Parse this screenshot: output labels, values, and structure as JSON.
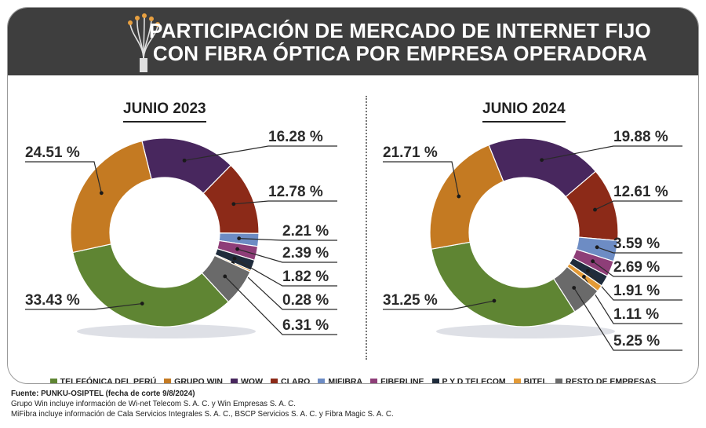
{
  "header": {
    "title_line1": "PARTICIPACIÓN DE MERCADO DE INTERNET FIJO",
    "title_line2": "CON FIBRA ÓPTICA POR EMPRESA OPERADORA"
  },
  "colors": {
    "TELEFÓNICA DEL PERÚ": "#5f8533",
    "GRUPO WIN": "#c47a22",
    "WOW": "#48275e",
    "CLARO": "#8c2a18",
    "MIFIBRA": "#6d8cc4",
    "FIBERLINE": "#8e3e78",
    "P Y D TELECOM": "#1f2c3c",
    "BITEL": "#e39a36",
    "RESTO DE EMPRESAS": "#6a6a6a"
  },
  "chart_data": [
    {
      "type": "pie",
      "title": "JUNIO 2023",
      "slices": [
        {
          "name": "WOW",
          "value": 16.28,
          "label": "16.28 %"
        },
        {
          "name": "CLARO",
          "value": 12.78,
          "label": "12.78 %"
        },
        {
          "name": "MIFIBRA",
          "value": 2.21,
          "label": "2.21 %"
        },
        {
          "name": "FIBERLINE",
          "value": 2.39,
          "label": "2.39 %"
        },
        {
          "name": "P Y D TELECOM",
          "value": 1.82,
          "label": "1.82 %"
        },
        {
          "name": "BITEL",
          "value": 0.28,
          "label": "0.28 %"
        },
        {
          "name": "RESTO DE EMPRESAS",
          "value": 6.31,
          "label": "6.31 %"
        },
        {
          "name": "TELEFÓNICA DEL PERÚ",
          "value": 33.43,
          "label": "33.43 %"
        },
        {
          "name": "GRUPO WIN",
          "value": 24.51,
          "label": "24.51 %"
        }
      ]
    },
    {
      "type": "pie",
      "title": "JUNIO 2024",
      "slices": [
        {
          "name": "WOW",
          "value": 19.88,
          "label": "19.88 %"
        },
        {
          "name": "CLARO",
          "value": 12.61,
          "label": "12.61 %"
        },
        {
          "name": "MIFIBRA",
          "value": 3.59,
          "label": "3.59 %"
        },
        {
          "name": "FIBERLINE",
          "value": 2.69,
          "label": "2.69 %"
        },
        {
          "name": "P Y D TELECOM",
          "value": 1.91,
          "label": "1.91 %"
        },
        {
          "name": "BITEL",
          "value": 1.11,
          "label": "1.11 %"
        },
        {
          "name": "RESTO DE EMPRESAS",
          "value": 5.25,
          "label": "5.25 %"
        },
        {
          "name": "TELEFÓNICA DEL PERÚ",
          "value": 31.25,
          "label": "31.25 %"
        },
        {
          "name": "GRUPO WIN",
          "value": 21.71,
          "label": "21.71 %"
        }
      ]
    }
  ],
  "legend": [
    "TELEFÓNICA DEL PERÚ",
    "GRUPO WIN",
    "WOW",
    "CLARO",
    "MIFIBRA",
    "FIBERLINE",
    "P Y D TELECOM",
    "BITEL",
    "RESTO DE EMPRESAS"
  ],
  "notes": {
    "source": "Fuente: PUNKU-OSIPTEL (fecha de corte 9/8/2024)",
    "line1": "Grupo Win incluye información de Wi-net Telecom S. A. C. y Win Empresas S. A. C.",
    "line2": "MiFibra incluye información de Cala Servicios Integrales S. A. C., BSCP Servicios S. A. C. y Fibra Magic S. A. C."
  }
}
